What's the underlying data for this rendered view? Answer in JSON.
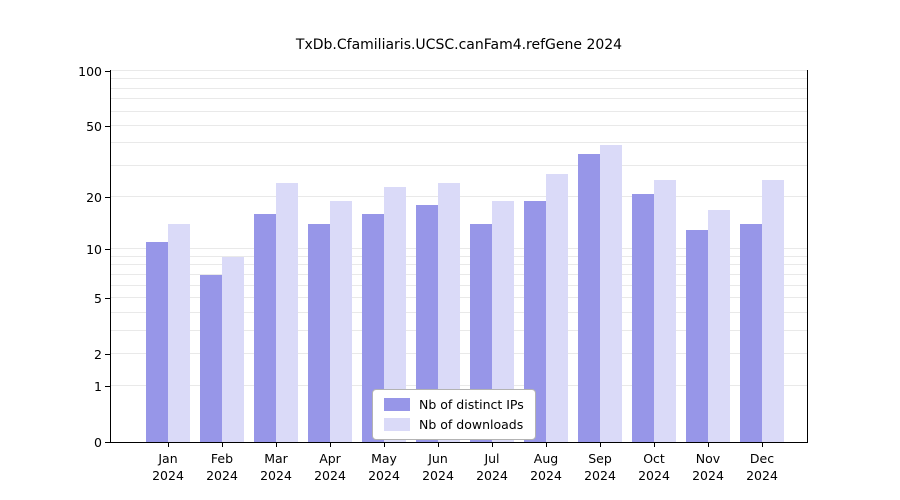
{
  "chart_data": {
    "type": "bar",
    "title": "TxDb.Cfamiliaris.UCSC.canFam4.refGene 2024",
    "scale": "log10(value+1)",
    "grid": "horizontal-minor",
    "legend_position": "lower center",
    "ylim": [
      0,
      100
    ],
    "yticks": [
      0,
      1,
      2,
      5,
      10,
      20,
      50,
      100
    ],
    "minor_gridlines": [
      1,
      2,
      3,
      4,
      5,
      6,
      7,
      8,
      9,
      10,
      20,
      30,
      40,
      50,
      60,
      70,
      80,
      90,
      100
    ],
    "categories": [
      "Jan",
      "Feb",
      "Mar",
      "Apr",
      "May",
      "Jun",
      "Jul",
      "Aug",
      "Sep",
      "Oct",
      "Nov",
      "Dec"
    ],
    "year_label": "2024",
    "series": [
      {
        "name": "Nb of distinct IPs",
        "color": "#9796e8",
        "values": [
          11,
          7,
          16,
          14,
          16,
          18,
          14,
          19,
          35,
          21,
          13,
          14
        ]
      },
      {
        "name": "Nb of downloads",
        "color": "#dadaf8",
        "values": [
          14,
          9,
          24,
          19,
          23,
          24,
          19,
          27,
          39,
          25,
          17,
          25
        ]
      }
    ],
    "axis_color": "#000000",
    "grid_color": "#e9e9e9",
    "background_color": "#ffffff"
  }
}
